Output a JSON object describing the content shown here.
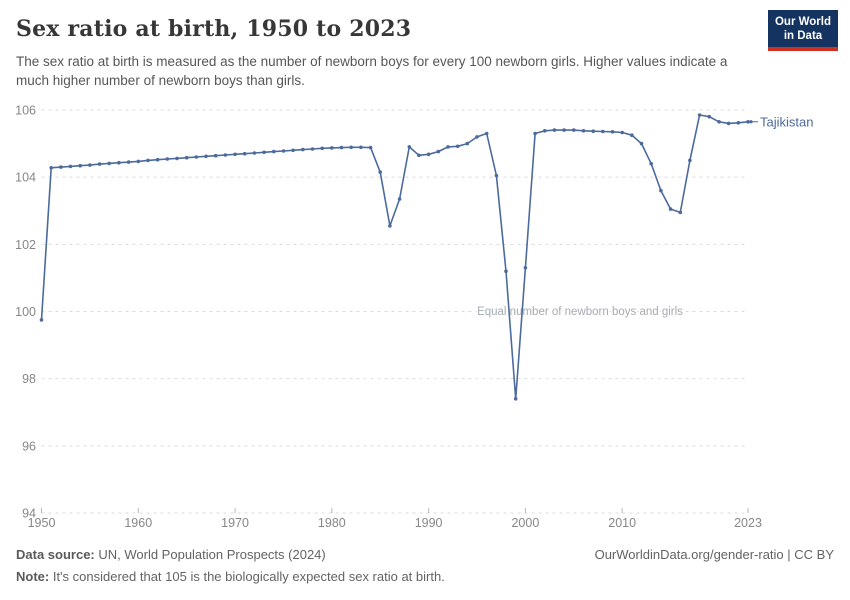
{
  "header": {
    "title": "Sex ratio at birth, 1950 to 2023",
    "subtitle": "The sex ratio at birth is measured as the number of newborn boys for every 100 newborn girls. Higher values indicate a much higher number of newborn boys than girls.",
    "logo": {
      "line1": "Our World",
      "line2": "in Data"
    }
  },
  "chart_data": {
    "type": "line",
    "title": "Sex ratio at birth, 1950 to 2023",
    "entity": "Tajikistan",
    "annotation": "Equal number of newborn boys and girls",
    "annotation_value": 100,
    "ylim": [
      94,
      106
    ],
    "yticks": [
      94,
      96,
      98,
      100,
      102,
      104,
      106
    ],
    "xticks": [
      1950,
      1960,
      1970,
      1980,
      1990,
      2000,
      2010,
      2023
    ],
    "grid": "horizontal-dashed",
    "legend_position": "line-end-label",
    "x": [
      1950,
      1951,
      1952,
      1953,
      1954,
      1955,
      1956,
      1957,
      1958,
      1959,
      1960,
      1961,
      1962,
      1963,
      1964,
      1965,
      1966,
      1967,
      1968,
      1969,
      1970,
      1971,
      1972,
      1973,
      1974,
      1975,
      1976,
      1977,
      1978,
      1979,
      1980,
      1981,
      1982,
      1983,
      1984,
      1985,
      1986,
      1987,
      1988,
      1989,
      1990,
      1991,
      1992,
      1993,
      1994,
      1995,
      1996,
      1997,
      1998,
      1999,
      2000,
      2001,
      2002,
      2003,
      2004,
      2005,
      2006,
      2007,
      2008,
      2009,
      2010,
      2011,
      2012,
      2013,
      2014,
      2015,
      2016,
      2017,
      2018,
      2019,
      2020,
      2021,
      2022,
      2023
    ],
    "series": [
      {
        "name": "Tajikistan",
        "color": "#4c6a9c",
        "values": [
          99.75,
          104.28,
          104.3,
          104.32,
          104.34,
          104.36,
          104.39,
          104.41,
          104.43,
          104.45,
          104.47,
          104.5,
          104.52,
          104.54,
          104.56,
          104.58,
          104.6,
          104.62,
          104.64,
          104.66,
          104.68,
          104.7,
          104.72,
          104.74,
          104.76,
          104.78,
          104.8,
          104.82,
          104.84,
          104.86,
          104.87,
          104.88,
          104.89,
          104.89,
          104.88,
          104.15,
          102.55,
          103.35,
          104.9,
          104.65,
          104.68,
          104.76,
          104.9,
          104.92,
          105.0,
          105.2,
          105.3,
          104.05,
          101.2,
          97.4,
          101.3,
          105.3,
          105.38,
          105.4,
          105.4,
          105.4,
          105.38,
          105.37,
          105.36,
          105.35,
          105.33,
          105.25,
          105.0,
          104.4,
          103.6,
          103.05,
          102.95,
          104.5,
          105.85,
          105.8,
          105.65,
          105.6,
          105.62,
          105.65
        ]
      }
    ]
  },
  "footer": {
    "source_label": "Data source:",
    "source_rest": " UN, World Population Prospects (2024)",
    "note_label": "Note:",
    "note_rest": " It's considered that 105 is the biologically expected sex ratio at birth.",
    "link": "OurWorldinData.org/gender-ratio | CC BY"
  },
  "colors": {
    "line": "#4c6a9c",
    "grid": "#dbdbdb",
    "tick_mark": "#b9b9b9",
    "axis_text": "#878787",
    "annotation": "#a5abb1",
    "logo_bg": "#153360",
    "logo_accent": "#cd3122"
  }
}
